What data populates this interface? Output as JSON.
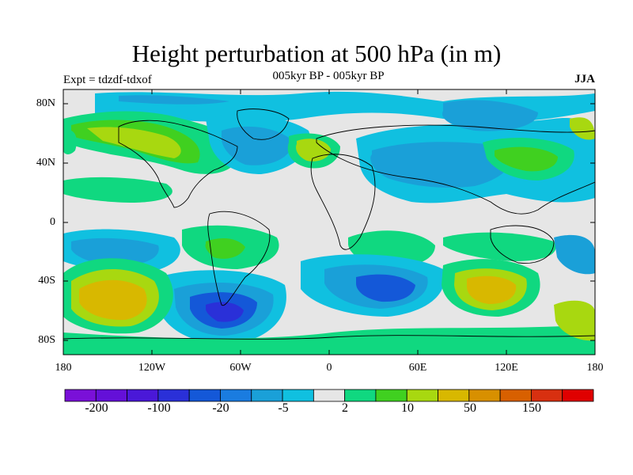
{
  "title": "Height perturbation at 500 hPa (in m)",
  "subtitle": "005kyr BP - 005kyr BP",
  "left_label": "Expt = tdzdf-tdxof",
  "right_label": "JJA",
  "lat_labels": [
    "80N",
    "40N",
    "0",
    "40S",
    "80S"
  ],
  "lon_labels": [
    "180",
    "120W",
    "60W",
    "0",
    "60E",
    "120E",
    "180"
  ],
  "colorbar": {
    "colors": [
      "#7a10d8",
      "#6410d8",
      "#4a18d8",
      "#2a30d8",
      "#1458d8",
      "#1a7ce0",
      "#1aa0d8",
      "#10c0e0",
      "#e6e6e6",
      "#10d880",
      "#40d020",
      "#a8d810",
      "#d8b800",
      "#d89000",
      "#d86000",
      "#d83010",
      "#e00000"
    ],
    "labels": [
      "-200",
      "-100",
      "-20",
      "-5",
      "2",
      "10",
      "50",
      "150"
    ]
  }
}
